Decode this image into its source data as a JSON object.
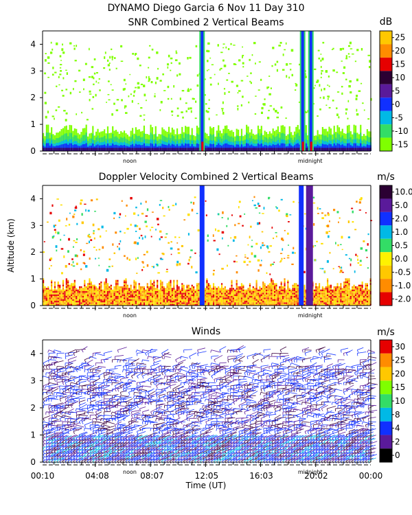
{
  "header": {
    "line1": "DYNAMO Diego Garcia    6 Nov 11 Day 310"
  },
  "colors": {
    "scale": [
      "#00ff00",
      "#7fff00",
      "#33dd66",
      "#00b9ff",
      "#007bff",
      "#0000ff",
      "#4b0082",
      "#3a003f",
      "#ff0000",
      "#ff8c00",
      "#ffc800",
      "#ffff33",
      "#ffffff"
    ]
  },
  "panels": [
    {
      "id": "snr",
      "title": "SNR Combined 2 Vertical Beams",
      "unit": "dB",
      "colorbar_labels": [
        "25",
        "20",
        "15",
        "10",
        "5",
        "0",
        "-5",
        "-10",
        "-15"
      ],
      "colorbar_colors": [
        "#ffc800",
        "#ff8c00",
        "#e60000",
        "#2b0033",
        "#5a1a9a",
        "#1030ff",
        "#00b9e6",
        "#33dd66",
        "#7fff00"
      ],
      "y_ticks": [
        "0",
        "1",
        "2",
        "3",
        "4"
      ],
      "x_markers": [
        "noon",
        "midnight"
      ]
    },
    {
      "id": "doppler",
      "title": "Doppler Velocity Combined 2 Vertical Beams",
      "unit": "m/s",
      "colorbar_labels": [
        "10.0",
        "5.0",
        "2.0",
        "1.0",
        "0.5",
        "0.0",
        "-0.5",
        "-1.0",
        "-2.0"
      ],
      "colorbar_colors": [
        "#2b0033",
        "#5a1a9a",
        "#1030ff",
        "#00b9e6",
        "#33dd66",
        "#fff200",
        "#ffc800",
        "#ff8c00",
        "#e60000"
      ],
      "y_ticks": [
        "0",
        "1",
        "2",
        "3",
        "4"
      ],
      "y_axis_label": "Altitude (km)",
      "x_markers": [
        "noon",
        "midnight"
      ]
    },
    {
      "id": "winds",
      "title": "Winds",
      "unit": "m/s",
      "colorbar_labels": [
        "30",
        "25",
        "20",
        "15",
        "10",
        "8",
        "4",
        "2",
        "0"
      ],
      "colorbar_colors": [
        "#e60000",
        "#ff8c00",
        "#ffc800",
        "#7fff00",
        "#33dd66",
        "#00b9e6",
        "#1030ff",
        "#5a1a9a",
        "#000000"
      ],
      "y_ticks": [
        "0",
        "1",
        "2",
        "3",
        "4"
      ],
      "x_markers": [
        "noon",
        "midnight"
      ],
      "x_tick_labels": [
        "00:10",
        "04:08",
        "08:07",
        "12:05",
        "16:03",
        "20:02",
        "00:00"
      ],
      "x_axis_label": "Time (UT)"
    }
  ],
  "chart_data": {
    "type": "heatmap",
    "title": "DYNAMO Diego Garcia    6 Nov 11 Day 310",
    "xlabel": "Time (UT)",
    "ylabel": "Altitude (km)",
    "xlim_hours": [
      0.17,
      24.0
    ],
    "ylim_km": [
      0,
      4.5
    ],
    "x_ticks": [
      "00:10",
      "04:08",
      "08:07",
      "12:05",
      "16:03",
      "20:02",
      "00:00"
    ],
    "panels": [
      {
        "name": "SNR Combined 2 Vertical Beams",
        "unit": "dB",
        "scale_levels": [
          -15,
          -10,
          -5,
          0,
          5,
          10,
          15,
          20,
          25
        ],
        "boundary_layer_top_km": 0.9,
        "features": [
          {
            "label": "convective plume",
            "time_hours": 11.7,
            "top_km": 4.5
          },
          {
            "label": "convective plume",
            "time_hours": 19.0,
            "top_km": 4.5
          },
          {
            "label": "convective plume",
            "time_hours": 19.6,
            "top_km": 4.5
          }
        ]
      },
      {
        "name": "Doppler Velocity Combined 2 Vertical Beams",
        "unit": "m/s",
        "scale_levels": [
          -2.0,
          -1.0,
          -0.5,
          0.0,
          0.5,
          1.0,
          2.0,
          5.0,
          10.0
        ],
        "features": [
          {
            "label": "downward motion",
            "time_hours": 11.7,
            "top_km": 4.5
          },
          {
            "label": "downward motion",
            "time_hours": 18.9,
            "top_km": 4.5
          },
          {
            "label": "strong downward motion",
            "time_hours": 19.5,
            "top_km": 4.5
          }
        ]
      },
      {
        "name": "Winds",
        "unit": "m/s",
        "scale_levels": [
          0,
          2,
          4,
          8,
          10,
          15,
          20,
          25,
          30
        ],
        "max_altitude_km": 4.3
      }
    ]
  }
}
